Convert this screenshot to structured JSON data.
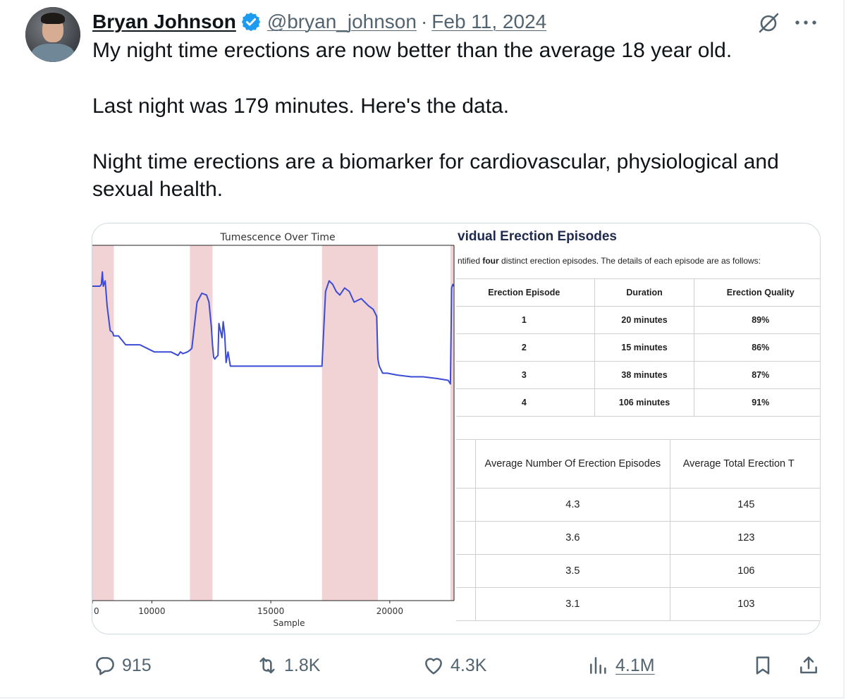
{
  "author": {
    "name": "Bryan Johnson",
    "handle": "@bryan_johnson",
    "separator": "·",
    "date": "Feb 11, 2024"
  },
  "tweet": {
    "para1": "My night time erections are now better than the average 18 year old.",
    "para2": "Last night was 179 minutes.  Here's the data.",
    "para3": "Night time erections are a biomarker for cardiovascular, physiological and sexual health."
  },
  "media": {
    "chart": {
      "title": "Tumescence Over Time",
      "xlabel": "Sample",
      "xticks": [
        "0",
        "10000",
        "15000",
        "20000"
      ]
    },
    "episodes": {
      "title": "vidual Erection Episodes",
      "subtitle_prefix": "ntified ",
      "subtitle_bold": "four",
      "subtitle_suffix": " distinct erection episodes. The details of each episode are as follows:",
      "headers": [
        "Erection Episode",
        "Duration",
        "Erection Quality"
      ],
      "rows": [
        [
          "1",
          "20 minutes",
          "89%"
        ],
        [
          "2",
          "15 minutes",
          "86%"
        ],
        [
          "3",
          "38 minutes",
          "87%"
        ],
        [
          "4",
          "106 minutes",
          "91%"
        ]
      ]
    },
    "averages": {
      "headers": [
        ">",
        "Average Number Of Erection Episodes",
        "Average  Total Erection T"
      ],
      "rows": [
        [
          "",
          "4.3",
          "145"
        ],
        [
          "",
          "3.6",
          "123"
        ],
        [
          "",
          "3.5",
          "106"
        ],
        [
          "",
          "3.1",
          "103"
        ]
      ]
    }
  },
  "stats": {
    "replies": "915",
    "reposts": "1.8K",
    "likes": "4.3K",
    "views": "4.1M"
  },
  "colors": {
    "line": "#3b4bd6",
    "shade": "#f1d2d5",
    "muted": "#536471"
  },
  "chart_data": {
    "type": "line",
    "title": "Tumescence Over Time",
    "xlabel": "Sample",
    "ylabel": "",
    "xlim": [
      7500,
      22700
    ],
    "ylim": [
      0,
      1
    ],
    "shaded_regions": [
      [
        7500,
        8400
      ],
      [
        11600,
        12550
      ],
      [
        17150,
        19500
      ],
      [
        22550,
        22700
      ]
    ],
    "series": [
      {
        "x": [
          7500,
          7820,
          7880,
          7920,
          7960,
          8040,
          8120,
          8250,
          8350,
          8400,
          8600,
          8900,
          9500,
          10100,
          10800,
          11100,
          11200,
          11300,
          11500,
          11600,
          11680,
          11900,
          12100,
          12300,
          12400,
          12500,
          12550,
          12600,
          12650,
          12700,
          12780,
          12820,
          12880,
          12950,
          13000,
          13060,
          13120,
          13200,
          13300,
          13800,
          14500,
          15500,
          16500,
          17000,
          17100,
          17150,
          17300,
          17450,
          17600,
          17750,
          17900,
          18100,
          18300,
          18500,
          18800,
          19100,
          19300,
          19450,
          19500,
          19560,
          19700,
          19900,
          20300,
          20900,
          21400,
          22000,
          22450,
          22550,
          22600,
          22650,
          22700
        ],
        "y": [
          0.885,
          0.885,
          0.89,
          0.925,
          0.885,
          0.9,
          0.83,
          0.76,
          0.755,
          0.745,
          0.745,
          0.72,
          0.72,
          0.7,
          0.7,
          0.69,
          0.7,
          0.695,
          0.7,
          0.705,
          0.71,
          0.84,
          0.865,
          0.86,
          0.84,
          0.77,
          0.72,
          0.685,
          0.68,
          0.685,
          0.69,
          0.78,
          0.76,
          0.74,
          0.785,
          0.75,
          0.67,
          0.7,
          0.66,
          0.66,
          0.66,
          0.66,
          0.66,
          0.66,
          0.66,
          0.66,
          0.87,
          0.9,
          0.89,
          0.87,
          0.86,
          0.88,
          0.87,
          0.84,
          0.85,
          0.83,
          0.82,
          0.8,
          0.68,
          0.66,
          0.64,
          0.64,
          0.635,
          0.63,
          0.63,
          0.625,
          0.62,
          0.61,
          0.88,
          0.89,
          0.885
        ]
      }
    ],
    "grid": false
  }
}
